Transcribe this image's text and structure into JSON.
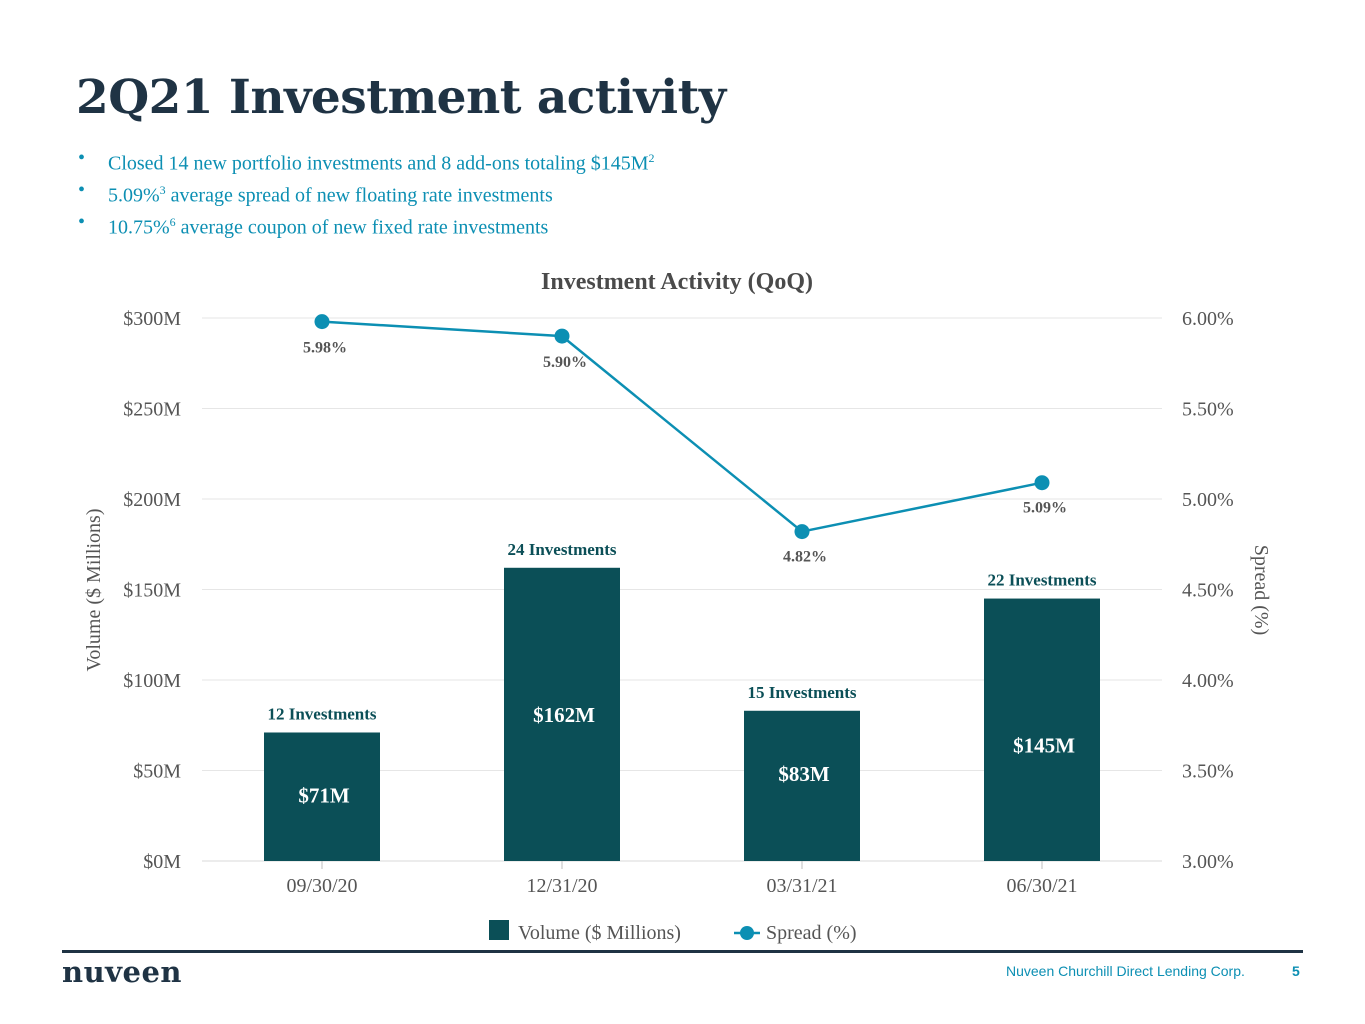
{
  "page": {
    "title": "2Q21 Investment activity",
    "bullets": [
      {
        "text": "Closed 14 new portfolio investments and 8 add-ons totaling $145M",
        "sup": "2",
        "rest": ""
      },
      {
        "text": "5.09%",
        "sup": "3",
        "rest": " average spread of new floating rate investments"
      },
      {
        "text": "10.75%",
        "sup": "6",
        "rest": " average coupon of new fixed rate investments"
      }
    ],
    "bullet_symbol": "•"
  },
  "chart_data": {
    "type": "bar",
    "title": "Investment Activity (QoQ)",
    "categories": [
      "09/30/20",
      "12/31/20",
      "03/31/21",
      "06/30/21"
    ],
    "series": [
      {
        "name": "Volume ($ Millions)",
        "type": "bar",
        "axis": "left",
        "values": [
          71,
          162,
          83,
          145
        ],
        "value_labels": [
          "$71M",
          "$162M",
          "$83M",
          "$145M"
        ],
        "top_labels": [
          "12 Investments",
          "24 Investments",
          "15 Investments",
          "22 Investments"
        ],
        "color": "#0b4f57"
      },
      {
        "name": "Spread (%)",
        "type": "line",
        "axis": "right",
        "values": [
          5.98,
          5.9,
          4.82,
          5.09
        ],
        "value_labels": [
          "5.98%",
          "5.90%",
          "4.82%",
          "5.09%"
        ],
        "color": "#0c8fb3"
      }
    ],
    "ylabel": "Volume ($ Millions)",
    "ylabel_right": "Spread (%)",
    "ylim": [
      0,
      300
    ],
    "ylim_right": [
      3.0,
      6.0
    ],
    "yticks": [
      "$0M",
      "$50M",
      "$100M",
      "$150M",
      "$200M",
      "$250M",
      "$300M"
    ],
    "yticks_right": [
      "3.00%",
      "3.50%",
      "4.00%",
      "4.50%",
      "5.00%",
      "5.50%",
      "6.00%"
    ],
    "grid": true,
    "legend": "bottom-center"
  },
  "footer": {
    "logo": "nuveen",
    "company": "Nuveen Churchill Direct Lending Corp.",
    "page_number": "5"
  }
}
